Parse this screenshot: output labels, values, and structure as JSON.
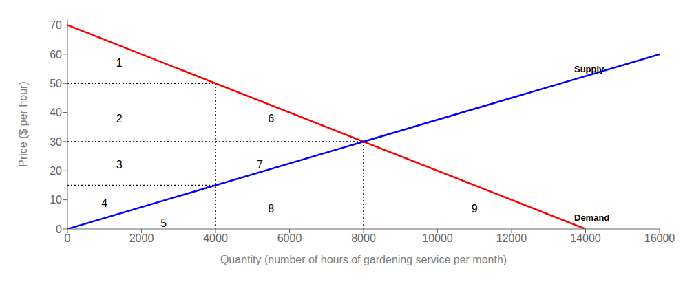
{
  "chart_data": {
    "type": "line",
    "title": "",
    "xlabel": "Quantity (number of hours of gardening service per month)",
    "ylabel": "Price ($ per hour)",
    "xlim": [
      0,
      16000
    ],
    "ylim": [
      0,
      72
    ],
    "xticks": [
      0,
      2000,
      4000,
      6000,
      8000,
      10000,
      12000,
      14000,
      16000
    ],
    "yticks": [
      0,
      10,
      20,
      30,
      40,
      50,
      60,
      70
    ],
    "grid": false,
    "series": [
      {
        "name": "Demand",
        "color": "#ff0000",
        "line_style": "solid",
        "x": [
          0,
          14000
        ],
        "values": [
          70,
          0
        ],
        "label_x": 13600,
        "label_y": 4
      },
      {
        "name": "Supply",
        "color": "#0000ff",
        "line_style": "solid",
        "x": [
          0,
          16000
        ],
        "values": [
          0,
          60
        ],
        "label_x": 13600,
        "label_y": 55
      }
    ],
    "guides": [
      {
        "color": "#000000",
        "line_style": "dotted",
        "x": [
          0,
          4000
        ],
        "values": [
          50,
          50
        ]
      },
      {
        "color": "#000000",
        "line_style": "dotted",
        "x": [
          4000,
          4000
        ],
        "values": [
          0,
          50
        ]
      },
      {
        "color": "#000000",
        "line_style": "dotted",
        "x": [
          0,
          8000
        ],
        "values": [
          30,
          30
        ]
      },
      {
        "color": "#000000",
        "line_style": "dotted",
        "x": [
          8000,
          8000
        ],
        "values": [
          0,
          30
        ]
      },
      {
        "color": "#000000",
        "line_style": "dotted",
        "x": [
          0,
          4000
        ],
        "values": [
          15,
          15
        ]
      }
    ],
    "annotations": [
      {
        "text": "1",
        "x": 1400,
        "y": 57
      },
      {
        "text": "2",
        "x": 1400,
        "y": 38
      },
      {
        "text": "3",
        "x": 1400,
        "y": 22
      },
      {
        "text": "4",
        "x": 1000,
        "y": 9
      },
      {
        "text": "5",
        "x": 2600,
        "y": 2
      },
      {
        "text": "6",
        "x": 5500,
        "y": 38
      },
      {
        "text": "7",
        "x": 5200,
        "y": 22
      },
      {
        "text": "8",
        "x": 5500,
        "y": 7
      },
      {
        "text": "9",
        "x": 11000,
        "y": 7
      }
    ]
  }
}
